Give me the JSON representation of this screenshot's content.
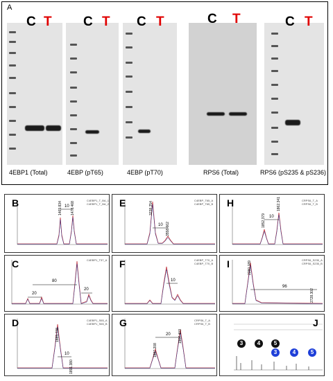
{
  "panel_a": {
    "letter": "A",
    "c": "C",
    "t": "T",
    "captions": [
      "4EBP1 (Total)",
      "4EBP (pT65)",
      "4EBP (pT70)",
      "RPS6 (Total)",
      "RPS6 (pS235 & pS236)"
    ]
  },
  "spectra": {
    "B": {
      "letter": "B",
      "peaks": [
        "1469.834",
        "1478.468"
      ],
      "delta": "10"
    },
    "C": {
      "letter": "C",
      "deltas": [
        "80",
        "20",
        "20"
      ]
    },
    "D": {
      "letter": "D",
      "peaks": [
        "1885.738",
        "1891.380"
      ],
      "delta": "10"
    },
    "E": {
      "letter": "E",
      "peaks": [
        "3238.254",
        "3558.662"
      ],
      "delta": "10"
    },
    "F": {
      "letter": "F",
      "delta": "10"
    },
    "G": {
      "letter": "G",
      "peaks": [
        "1887.208",
        "1907.403"
      ],
      "delta": "20"
    },
    "H": {
      "letter": "H",
      "peaks": [
        "1852.379",
        "1862.341"
      ],
      "delta": "10"
    },
    "I": {
      "letter": "I",
      "peaks": [
        "2280.189",
        "2728.302"
      ],
      "delta": "96"
    },
    "J": {
      "letter": "J",
      "markers": [
        "3",
        "4",
        "5",
        "3",
        "4",
        "5"
      ]
    }
  },
  "colors": {
    "t_label": "#e00000",
    "marker_black": "#111111",
    "marker_blue": "#1e3fd8",
    "trace_red": "#c0303a",
    "trace_blue": "#2a3a90"
  }
}
